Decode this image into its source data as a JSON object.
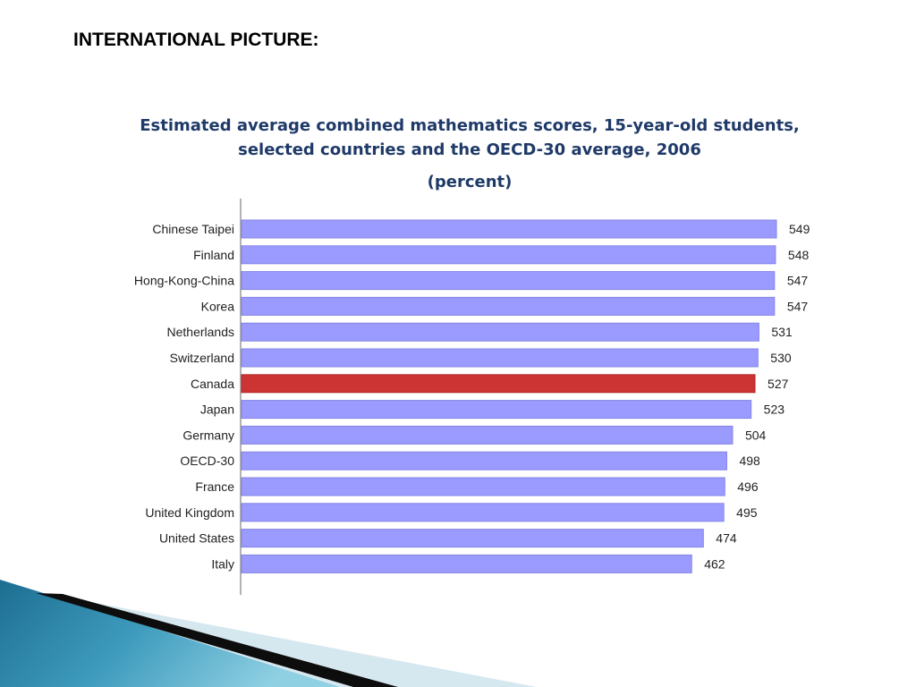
{
  "slide": {
    "heading": "INTERNATIONAL PICTURE:"
  },
  "chart_data": {
    "type": "bar",
    "orientation": "horizontal",
    "title_line1": "Estimated average combined mathematics scores, 15-year-old students,",
    "title_line2": "selected countries and the OECD-30 average, 2006",
    "subtitle": "(percent)",
    "categories": [
      "Chinese Taipei",
      "Finland",
      "Hong-Kong-China",
      "Korea",
      "Netherlands",
      "Switzerland",
      "Canada",
      "Japan",
      "Germany",
      "OECD-30",
      "France",
      "United Kingdom",
      "United States",
      "Italy"
    ],
    "values": [
      549,
      548,
      547,
      547,
      531,
      530,
      527,
      523,
      504,
      498,
      496,
      495,
      474,
      462
    ],
    "value_labels": [
      "549",
      "548",
      "547",
      "547",
      "531",
      "530",
      "527",
      "523",
      "504",
      "498",
      "496",
      "495",
      "474",
      "462"
    ],
    "highlight_category": "Canada",
    "xlim": [
      0,
      549
    ],
    "grid": false,
    "legend": "none",
    "colors": {
      "bar": "#9b9bff",
      "bar_edge": "#8484e6",
      "highlight": "#cc3333",
      "title": "#1f3a68"
    }
  },
  "decoration": {
    "colors": {
      "dark_stripe": "#0d0d0d",
      "teal_light": "#8fd0e3",
      "teal_mid": "#3e9bbd",
      "teal_dark": "#1d6e91",
      "pale": "#d6e8ef"
    }
  }
}
